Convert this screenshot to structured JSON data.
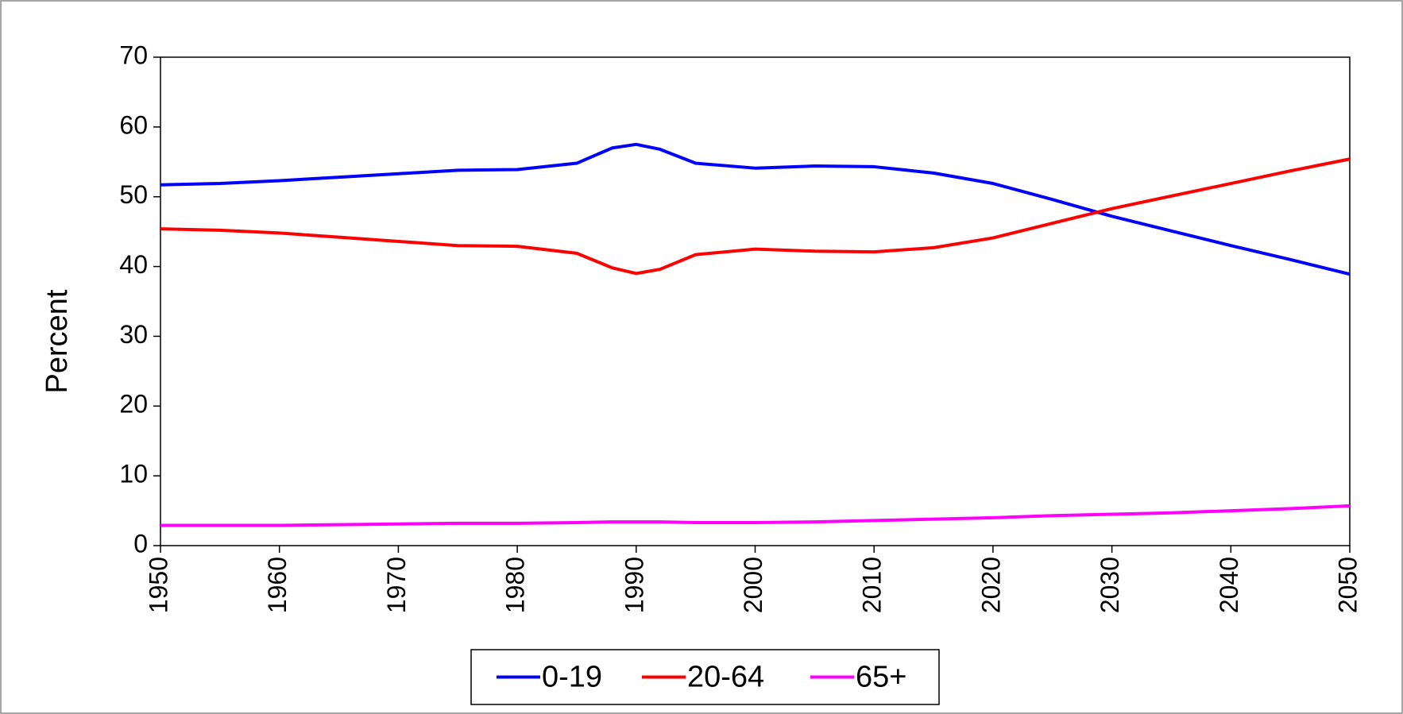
{
  "chart_data": {
    "type": "line",
    "ylabel": "Percent",
    "x": [
      1950,
      1955,
      1960,
      1965,
      1970,
      1975,
      1980,
      1985,
      1988,
      1990,
      1992,
      1995,
      2000,
      2005,
      2010,
      2015,
      2020,
      2025,
      2030,
      2035,
      2040,
      2045,
      2050
    ],
    "series": [
      {
        "name": "0-19",
        "color": "#0000ff",
        "values": [
          51.7,
          51.9,
          52.3,
          52.8,
          53.3,
          53.8,
          53.9,
          54.8,
          57.0,
          57.5,
          56.8,
          54.8,
          54.1,
          54.4,
          54.3,
          53.4,
          51.9,
          49.6,
          47.2,
          45.1,
          43.0,
          41.0,
          38.9
        ]
      },
      {
        "name": "20-64",
        "color": "#ff0000",
        "values": [
          45.4,
          45.2,
          44.8,
          44.2,
          43.6,
          43.0,
          42.9,
          41.9,
          39.8,
          39.0,
          39.6,
          41.7,
          42.5,
          42.2,
          42.1,
          42.7,
          44.1,
          46.2,
          48.3,
          50.1,
          51.9,
          53.7,
          55.4
        ]
      },
      {
        "name": "65+",
        "color": "#ff00ff",
        "values": [
          2.9,
          2.9,
          2.9,
          3.0,
          3.1,
          3.2,
          3.2,
          3.3,
          3.4,
          3.4,
          3.4,
          3.3,
          3.3,
          3.4,
          3.6,
          3.8,
          4.0,
          4.3,
          4.5,
          4.7,
          5.0,
          5.3,
          5.7
        ]
      }
    ],
    "xlim": [
      1950,
      2050
    ],
    "xticks": [
      1950,
      1960,
      1970,
      1980,
      1990,
      2000,
      2010,
      2020,
      2030,
      2040,
      2050
    ],
    "ylim": [
      0,
      70
    ],
    "yticks": [
      0,
      10,
      20,
      30,
      40,
      50,
      60,
      70
    ],
    "grid": false,
    "legend": "bottom"
  }
}
